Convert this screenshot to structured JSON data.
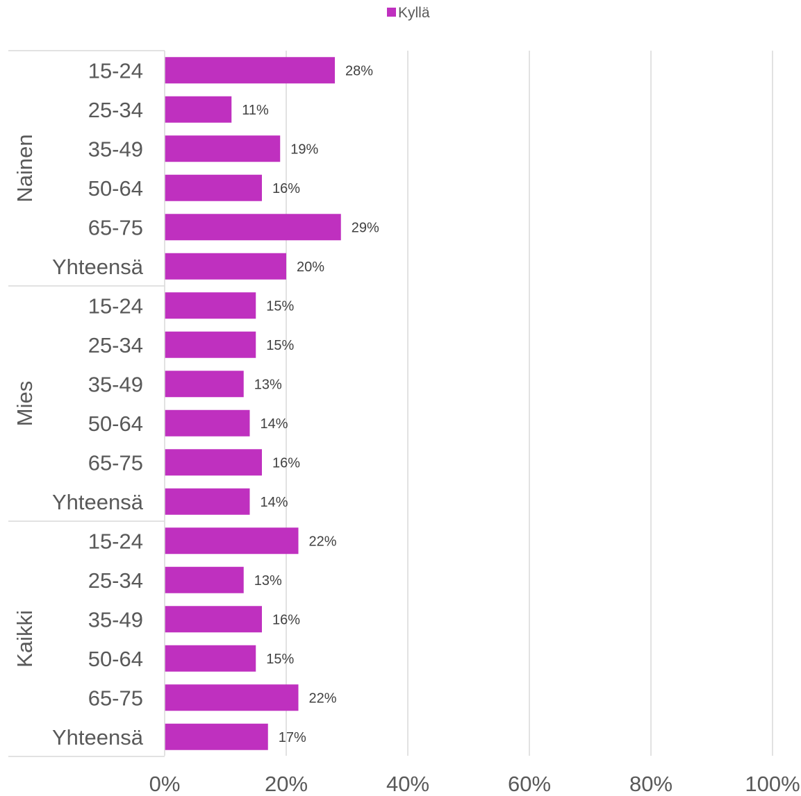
{
  "chart_data": {
    "type": "bar",
    "orientation": "horizontal",
    "legend": {
      "position": "top",
      "entries": [
        "Kyllä"
      ]
    },
    "series": [
      {
        "name": "Kyllä",
        "color": "#BF30BF",
        "values": [
          0.28,
          0.11,
          0.19,
          0.16,
          0.29,
          0.2,
          0.15,
          0.15,
          0.13,
          0.14,
          0.16,
          0.14,
          0.22,
          0.13,
          0.16,
          0.15,
          0.22,
          0.17
        ],
        "data_labels": [
          "28%",
          "11%",
          "19%",
          "16%",
          "29%",
          "20%",
          "15%",
          "15%",
          "13%",
          "14%",
          "16%",
          "14%",
          "22%",
          "13%",
          "16%",
          "15%",
          "22%",
          "17%"
        ]
      }
    ],
    "groups": [
      {
        "label": "Nainen",
        "categories": [
          "15-24",
          "25-34",
          "35-49",
          "50-64",
          "65-75",
          "Yhteensä"
        ]
      },
      {
        "label": "Mies",
        "categories": [
          "15-24",
          "25-34",
          "35-49",
          "50-64",
          "65-75",
          "Yhteensä"
        ]
      },
      {
        "label": "Kaikki",
        "categories": [
          "15-24",
          "25-34",
          "35-49",
          "50-64",
          "65-75",
          "Yhteensä"
        ]
      }
    ],
    "xlim": [
      0,
      1
    ],
    "x_ticks": [
      0,
      0.2,
      0.4,
      0.6,
      0.8,
      1.0
    ],
    "x_tick_labels": [
      "0%",
      "20%",
      "40%",
      "60%",
      "80%",
      "100%"
    ],
    "grid": {
      "vertical": true,
      "color": "#D9D9D9"
    },
    "axis_color": "#D9D9D9"
  }
}
